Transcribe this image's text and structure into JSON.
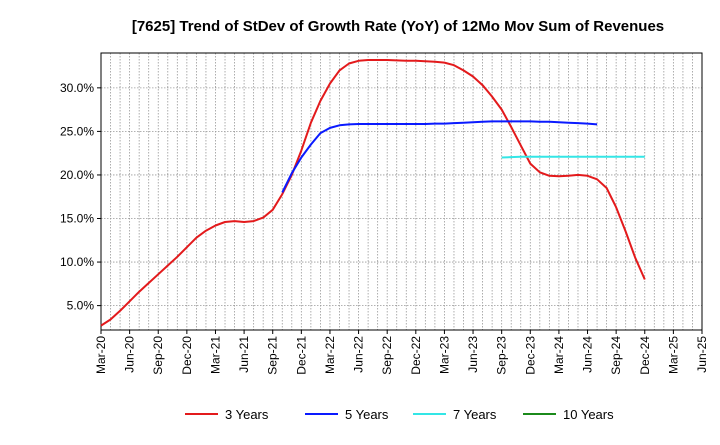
{
  "chart_data": {
    "type": "line",
    "title": "[7625]  Trend of StDev of Growth Rate (YoY) of 12Mo Mov Sum of Revenues",
    "xlabel": "",
    "ylabel": "",
    "x_ticks": [
      "Mar-20",
      "Jun-20",
      "Sep-20",
      "Dec-20",
      "Mar-21",
      "Jun-21",
      "Sep-21",
      "Dec-21",
      "Mar-22",
      "Jun-22",
      "Sep-22",
      "Dec-22",
      "Mar-23",
      "Jun-23",
      "Sep-23",
      "Dec-23",
      "Mar-24",
      "Jun-24",
      "Sep-24",
      "Dec-24",
      "Mar-25",
      "Jun-25"
    ],
    "y_ticks": [
      5,
      10,
      15,
      20,
      25,
      30
    ],
    "y_tick_labels": [
      "5.0%",
      "10.0%",
      "15.0%",
      "20.0%",
      "25.0%",
      "30.0%"
    ],
    "xlim": [
      0,
      63
    ],
    "ylim": [
      2.2,
      34.0
    ],
    "grid": true,
    "legend_position": "bottom",
    "series": [
      {
        "name": "3 Years",
        "color": "#e31a1c",
        "values": [
          [
            0,
            2.7
          ],
          [
            1,
            3.4
          ],
          [
            2,
            4.4
          ],
          [
            3,
            5.5
          ],
          [
            4,
            6.6
          ],
          [
            5,
            7.6
          ],
          [
            6,
            8.6
          ],
          [
            7,
            9.6
          ],
          [
            8,
            10.6
          ],
          [
            9,
            11.7
          ],
          [
            10,
            12.8
          ],
          [
            11,
            13.6
          ],
          [
            12,
            14.2
          ],
          [
            13,
            14.6
          ],
          [
            14,
            14.7
          ],
          [
            15,
            14.6
          ],
          [
            16,
            14.7
          ],
          [
            17,
            15.1
          ],
          [
            18,
            16.0
          ],
          [
            19,
            17.8
          ],
          [
            20,
            20.0
          ],
          [
            21,
            22.8
          ],
          [
            22,
            26.0
          ],
          [
            23,
            28.5
          ],
          [
            24,
            30.5
          ],
          [
            25,
            32.0
          ],
          [
            26,
            32.8
          ],
          [
            27,
            33.1
          ],
          [
            28,
            33.2
          ],
          [
            29,
            33.2
          ],
          [
            30,
            33.2
          ],
          [
            31,
            33.15
          ],
          [
            32,
            33.1
          ],
          [
            33,
            33.1
          ],
          [
            34,
            33.05
          ],
          [
            35,
            33.0
          ],
          [
            36,
            32.9
          ],
          [
            37,
            32.6
          ],
          [
            38,
            32.0
          ],
          [
            39,
            31.3
          ],
          [
            40,
            30.3
          ],
          [
            41,
            29.0
          ],
          [
            42,
            27.5
          ],
          [
            43,
            25.5
          ],
          [
            44,
            23.4
          ],
          [
            45,
            21.3
          ],
          [
            46,
            20.3
          ],
          [
            47,
            19.9
          ],
          [
            48,
            19.85
          ],
          [
            49,
            19.9
          ],
          [
            50,
            20.0
          ],
          [
            51,
            19.9
          ],
          [
            52,
            19.5
          ],
          [
            53,
            18.5
          ],
          [
            54,
            16.3
          ],
          [
            55,
            13.5
          ],
          [
            56,
            10.5
          ],
          [
            57,
            8.0
          ]
        ]
      },
      {
        "name": "5 Years",
        "color": "#0a1aff",
        "values": [
          [
            19,
            18.0
          ],
          [
            20,
            20.2
          ],
          [
            21,
            22.0
          ],
          [
            22,
            23.5
          ],
          [
            23,
            24.8
          ],
          [
            24,
            25.4
          ],
          [
            25,
            25.7
          ],
          [
            26,
            25.8
          ],
          [
            27,
            25.85
          ],
          [
            28,
            25.85
          ],
          [
            29,
            25.85
          ],
          [
            30,
            25.85
          ],
          [
            31,
            25.85
          ],
          [
            32,
            25.85
          ],
          [
            33,
            25.85
          ],
          [
            34,
            25.85
          ],
          [
            35,
            25.9
          ],
          [
            36,
            25.9
          ],
          [
            37,
            25.95
          ],
          [
            38,
            26.0
          ],
          [
            39,
            26.05
          ],
          [
            40,
            26.1
          ],
          [
            41,
            26.15
          ],
          [
            42,
            26.15
          ],
          [
            43,
            26.15
          ],
          [
            44,
            26.15
          ],
          [
            45,
            26.15
          ],
          [
            46,
            26.1
          ],
          [
            47,
            26.1
          ],
          [
            48,
            26.05
          ],
          [
            49,
            26.0
          ],
          [
            50,
            25.95
          ],
          [
            51,
            25.9
          ],
          [
            52,
            25.8
          ]
        ]
      },
      {
        "name": "7 Years",
        "color": "#33e6e6",
        "values": [
          [
            42,
            22.0
          ],
          [
            43,
            22.05
          ],
          [
            44,
            22.1
          ],
          [
            45,
            22.1
          ],
          [
            46,
            22.1
          ],
          [
            47,
            22.1
          ],
          [
            48,
            22.1
          ],
          [
            49,
            22.1
          ],
          [
            50,
            22.1
          ],
          [
            51,
            22.1
          ],
          [
            52,
            22.1
          ],
          [
            53,
            22.1
          ],
          [
            54,
            22.1
          ],
          [
            55,
            22.1
          ],
          [
            56,
            22.1
          ],
          [
            57,
            22.1
          ]
        ]
      },
      {
        "name": "10 Years",
        "color": "#1b8a1b",
        "values": []
      }
    ]
  }
}
